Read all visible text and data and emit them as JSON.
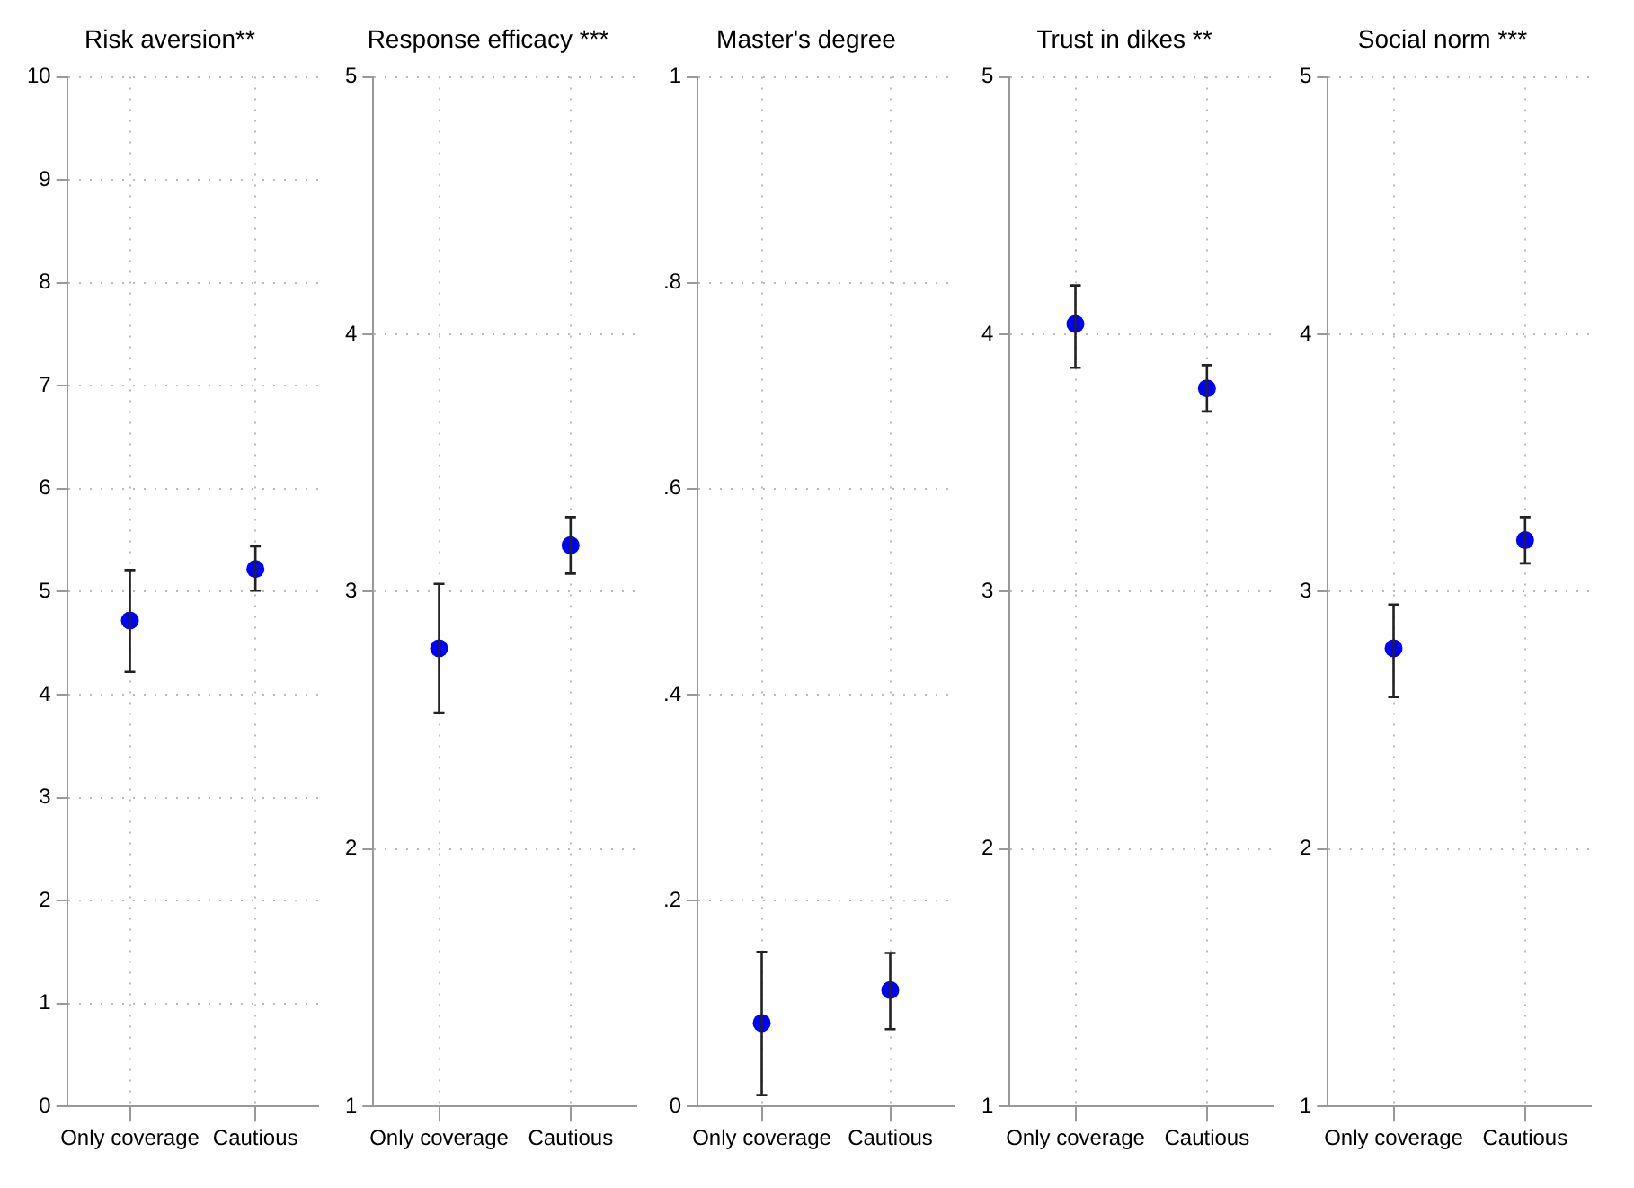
{
  "chart_data": [
    {
      "type": "scatter",
      "title": "Risk aversion**",
      "categories": [
        "Only coverage",
        "Cautious"
      ],
      "values": [
        4.72,
        5.22
      ],
      "errors": [
        [
          4.22,
          5.21
        ],
        [
          5.01,
          5.44
        ]
      ],
      "color": "#0000ff",
      "marker": "circle",
      "ylim": [
        0,
        10
      ],
      "yticks": [
        0,
        1,
        2,
        3,
        4,
        5,
        6,
        7,
        8,
        9,
        10
      ],
      "grid": true,
      "legend": false
    },
    {
      "type": "scatter",
      "title": "Response efficacy ***",
      "categories": [
        "Only coverage",
        "Cautious"
      ],
      "values": [
        2.78,
        3.18
      ],
      "errors": [
        [
          2.53,
          3.03
        ],
        [
          3.07,
          3.29
        ]
      ],
      "color": "#0000ff",
      "marker": "circle",
      "ylim": [
        1,
        5
      ],
      "yticks": [
        1,
        2,
        3,
        4,
        5
      ],
      "grid": true,
      "legend": false
    },
    {
      "type": "scatter",
      "title": "Master's degree",
      "categories": [
        "Only coverage",
        "Cautious"
      ],
      "values": [
        0.081,
        0.113
      ],
      "errors": [
        [
          0.011,
          0.15
        ],
        [
          0.075,
          0.149
        ]
      ],
      "color": "#0000ff",
      "marker": "circle",
      "ylim": [
        0,
        1
      ],
      "yticks": [
        0,
        {
          "value": 0.2,
          "label": ".2"
        },
        {
          "value": 0.4,
          "label": ".4"
        },
        {
          "value": 0.6,
          "label": ".6"
        },
        {
          "value": 0.8,
          "label": ".8"
        },
        1
      ],
      "grid": true,
      "legend": false
    },
    {
      "type": "scatter",
      "title": "Trust in dikes **",
      "categories": [
        "Only coverage",
        "Cautious"
      ],
      "values": [
        4.04,
        3.79
      ],
      "errors": [
        [
          3.87,
          4.19
        ],
        [
          3.7,
          3.88
        ]
      ],
      "color": "#0000ff",
      "marker": "circle",
      "ylim": [
        1,
        5
      ],
      "yticks": [
        1,
        2,
        3,
        4,
        5
      ],
      "grid": true,
      "legend": false
    },
    {
      "type": "scatter",
      "title": "Social norm ***",
      "categories": [
        "Only coverage",
        "Cautious"
      ],
      "values": [
        2.78,
        3.2
      ],
      "errors": [
        [
          2.59,
          2.95
        ],
        [
          3.11,
          3.29
        ]
      ],
      "color": "#0000ff",
      "marker": "circle",
      "ylim": [
        1,
        5
      ],
      "yticks": [
        1,
        2,
        3,
        4,
        5
      ],
      "grid": true,
      "legend": false
    }
  ]
}
